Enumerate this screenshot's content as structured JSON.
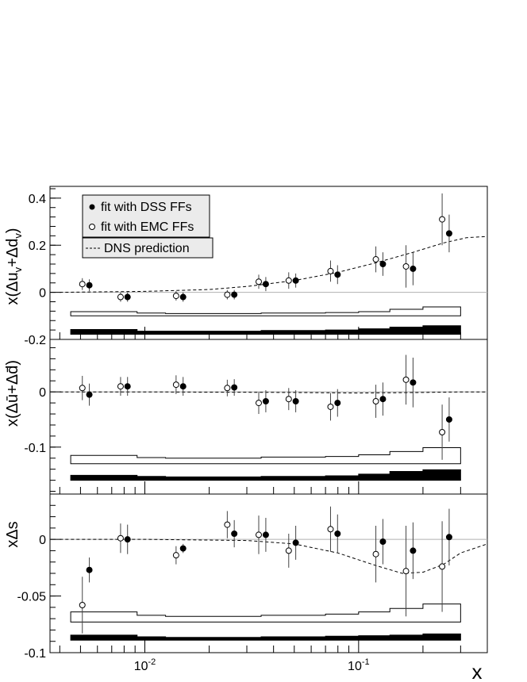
{
  "chart_data": [
    {
      "type": "scatter",
      "panel": "top",
      "ylabel": "x(Δu_v+Δd_v)",
      "ylim": [
        -0.2,
        0.45
      ],
      "yticks": [
        {
          "v": -0.2,
          "label": "-0.2"
        },
        {
          "v": 0,
          "label": "0"
        },
        {
          "v": 0.2,
          "label": "0.2"
        },
        {
          "v": 0.4,
          "label": "0.4"
        }
      ],
      "legend": {
        "dss": "fit with DSS FFs",
        "emc": "fit with EMC FFs",
        "dns": "DNS prediction"
      },
      "series": [
        {
          "name": "fit with DSS FFs",
          "x": [
            0.0055,
            0.0083,
            0.0151,
            0.0262,
            0.0368,
            0.0508,
            0.0797,
            0.1299,
            0.1797,
            0.2652
          ],
          "y": [
            0.03,
            -0.02,
            -0.02,
            -0.01,
            0.035,
            0.05,
            0.075,
            0.12,
            0.1,
            0.25
          ],
          "err": [
            0.025,
            0.02,
            0.02,
            0.02,
            0.03,
            0.03,
            0.04,
            0.05,
            0.07,
            0.08
          ]
        },
        {
          "name": "fit with EMC FFs",
          "x": [
            0.0051,
            0.0077,
            0.014,
            0.0243,
            0.0341,
            0.0471,
            0.0739,
            0.1204,
            0.1666,
            0.2459
          ],
          "y": [
            0.035,
            -0.02,
            -0.015,
            -0.01,
            0.045,
            0.05,
            0.09,
            0.14,
            0.11,
            0.31
          ],
          "err": [
            0.025,
            0.02,
            0.02,
            0.02,
            0.03,
            0.035,
            0.045,
            0.055,
            0.09,
            0.11
          ]
        }
      ],
      "dns_curve": {
        "x": [
          0.004,
          0.01,
          0.02,
          0.03,
          0.05,
          0.08,
          0.12,
          0.18,
          0.25,
          0.32,
          0.4
        ],
        "y": [
          0.0,
          0.004,
          0.012,
          0.025,
          0.05,
          0.085,
          0.125,
          0.17,
          0.21,
          0.232,
          0.237
        ]
      },
      "sys_open": {
        "x_edges": [
          0.0045,
          0.0092,
          0.0125,
          0.025,
          0.035,
          0.07,
          0.1,
          0.14,
          0.2,
          0.3
        ],
        "top": [
          -0.082,
          -0.088,
          -0.09,
          -0.09,
          -0.088,
          -0.086,
          -0.082,
          -0.072,
          -0.062
        ],
        "bottom": [
          -0.1,
          -0.1,
          -0.1,
          -0.1,
          -0.1,
          -0.1,
          -0.1,
          -0.1,
          -0.1
        ]
      },
      "sys_filled": {
        "x_edges": [
          0.0045,
          0.0092,
          0.0125,
          0.025,
          0.035,
          0.07,
          0.1,
          0.14,
          0.2,
          0.3
        ],
        "top": [
          -0.158,
          -0.165,
          -0.165,
          -0.165,
          -0.162,
          -0.16,
          -0.155,
          -0.148,
          -0.142
        ],
        "bottom": [
          -0.178,
          -0.178,
          -0.178,
          -0.178,
          -0.178,
          -0.178,
          -0.178,
          -0.178,
          -0.178
        ]
      }
    },
    {
      "type": "scatter",
      "panel": "middle",
      "ylabel": "x(Δū+Δd̄)",
      "ylim": [
        -0.185,
        0.095
      ],
      "yticks": [
        {
          "v": -0.1,
          "label": "-0.1"
        },
        {
          "v": 0,
          "label": "0"
        }
      ],
      "series": [
        {
          "name": "fit with DSS FFs",
          "x": [
            0.0055,
            0.0083,
            0.0151,
            0.0262,
            0.0368,
            0.0508,
            0.0797,
            0.1299,
            0.1797,
            0.2652
          ],
          "y": [
            -0.005,
            0.01,
            0.01,
            0.008,
            -0.017,
            -0.017,
            -0.02,
            -0.013,
            0.017,
            -0.05
          ],
          "err": [
            0.02,
            0.017,
            0.017,
            0.015,
            0.02,
            0.02,
            0.025,
            0.03,
            0.045,
            0.04
          ]
        },
        {
          "name": "fit with EMC FFs",
          "x": [
            0.0051,
            0.0077,
            0.014,
            0.0243,
            0.0341,
            0.0471,
            0.0739,
            0.1204,
            0.1666,
            0.2459
          ],
          "y": [
            0.007,
            0.01,
            0.013,
            0.007,
            -0.02,
            -0.013,
            -0.027,
            -0.017,
            0.022,
            -0.073
          ],
          "err": [
            0.022,
            0.017,
            0.017,
            0.015,
            0.02,
            0.02,
            0.025,
            0.03,
            0.045,
            0.05
          ]
        }
      ],
      "dns_curve": {
        "x": [
          0.004,
          0.01,
          0.05,
          0.1,
          0.2,
          0.3,
          0.4
        ],
        "y": [
          0.0,
          0.0,
          -0.001,
          -0.002,
          -0.001,
          0.0,
          0.0
        ]
      },
      "sys_open": {
        "x_edges": [
          0.0045,
          0.0092,
          0.0125,
          0.025,
          0.035,
          0.07,
          0.1,
          0.14,
          0.2,
          0.3
        ],
        "top": [
          -0.115,
          -0.119,
          -0.12,
          -0.12,
          -0.118,
          -0.117,
          -0.114,
          -0.108,
          -0.101
        ],
        "bottom": [
          -0.13,
          -0.13,
          -0.13,
          -0.13,
          -0.13,
          -0.13,
          -0.13,
          -0.13,
          -0.13
        ]
      },
      "sys_filled": {
        "x_edges": [
          0.0045,
          0.0092,
          0.0125,
          0.025,
          0.035,
          0.07,
          0.1,
          0.14,
          0.2,
          0.3
        ],
        "top": [
          -0.151,
          -0.153,
          -0.154,
          -0.154,
          -0.153,
          -0.152,
          -0.149,
          -0.144,
          -0.141
        ],
        "bottom": [
          -0.16,
          -0.16,
          -0.16,
          -0.16,
          -0.16,
          -0.16,
          -0.16,
          -0.16,
          -0.16
        ]
      }
    },
    {
      "type": "scatter",
      "panel": "bottom",
      "ylabel": "xΔs",
      "ylim": [
        -0.1,
        0.04
      ],
      "yticks": [
        {
          "v": -0.1,
          "label": "-0.1"
        },
        {
          "v": -0.05,
          "label": "-0.05"
        },
        {
          "v": 0,
          "label": "0"
        }
      ],
      "series": [
        {
          "name": "fit with DSS FFs",
          "x": [
            0.0055,
            0.0083,
            0.0151,
            0.0262,
            0.0368,
            0.0508,
            0.0797,
            0.1299,
            0.1797,
            0.2652
          ],
          "y": [
            -0.027,
            0.0,
            -0.008,
            0.005,
            0.004,
            -0.003,
            0.005,
            -0.002,
            -0.01,
            0.002
          ],
          "err": [
            0.011,
            0.013,
            0.004,
            0.012,
            0.015,
            0.015,
            0.017,
            0.02,
            0.025,
            0.025
          ]
        },
        {
          "name": "fit with EMC FFs",
          "x": [
            0.0051,
            0.0077,
            0.014,
            0.0243,
            0.0341,
            0.0471,
            0.0739,
            0.1204,
            0.1666,
            0.2459
          ],
          "y": [
            -0.058,
            0.001,
            -0.014,
            0.013,
            0.004,
            -0.01,
            0.009,
            -0.013,
            -0.028,
            -0.024
          ],
          "err": [
            0.025,
            0.013,
            0.008,
            0.012,
            0.017,
            0.015,
            0.02,
            0.025,
            0.04,
            0.04
          ]
        }
      ],
      "dns_curve": {
        "x": [
          0.004,
          0.01,
          0.03,
          0.05,
          0.08,
          0.12,
          0.16,
          0.2,
          0.25,
          0.3,
          0.4
        ],
        "y": [
          0.0,
          0.0,
          -0.001,
          -0.004,
          -0.012,
          -0.023,
          -0.03,
          -0.029,
          -0.022,
          -0.012,
          -0.004
        ]
      },
      "sys_open": {
        "x_edges": [
          0.0045,
          0.0092,
          0.0125,
          0.025,
          0.035,
          0.07,
          0.1,
          0.14,
          0.2,
          0.3
        ],
        "top": [
          -0.064,
          -0.067,
          -0.068,
          -0.068,
          -0.067,
          -0.066,
          -0.064,
          -0.061,
          -0.057
        ],
        "bottom": [
          -0.073,
          -0.073,
          -0.073,
          -0.073,
          -0.073,
          -0.073,
          -0.073,
          -0.073,
          -0.073
        ]
      },
      "sys_filled": {
        "x_edges": [
          0.0045,
          0.0092,
          0.0125,
          0.025,
          0.035,
          0.07,
          0.1,
          0.14,
          0.2,
          0.3
        ],
        "top": [
          -0.0845,
          -0.086,
          -0.0865,
          -0.0865,
          -0.086,
          -0.0855,
          -0.085,
          -0.0845,
          -0.0835
        ],
        "bottom": [
          -0.089,
          -0.089,
          -0.089,
          -0.089,
          -0.089,
          -0.089,
          -0.089,
          -0.089,
          -0.089
        ]
      }
    }
  ],
  "x_axis": {
    "label": "x",
    "scale": "log",
    "xlim": [
      0.0036,
      0.4
    ],
    "major_labels": [
      {
        "v": 0.01,
        "base": "10",
        "exp": "-2"
      },
      {
        "v": 0.1,
        "base": "10",
        "exp": "-1"
      }
    ]
  }
}
